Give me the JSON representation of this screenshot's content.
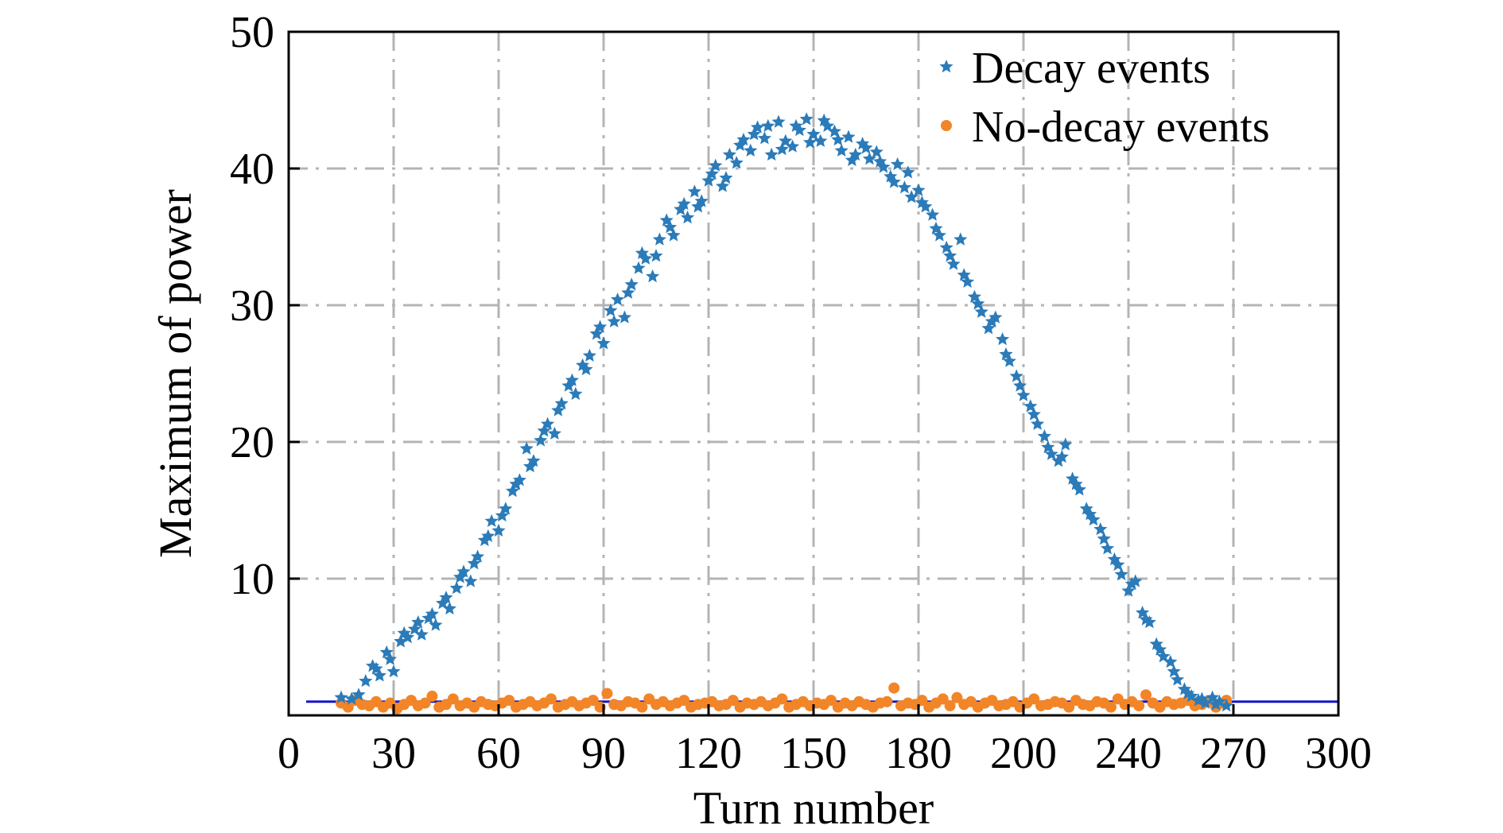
{
  "chart_data": {
    "type": "scatter",
    "title": "",
    "xlabel": "Turn number",
    "ylabel": "Maximum of power",
    "xlim": [
      0,
      300
    ],
    "ylim": [
      0,
      50
    ],
    "grid": true,
    "legend_position": "top-right",
    "x_tick_labels": [
      "0",
      "30",
      "60",
      "90",
      "120",
      "150",
      "180",
      "200",
      "240",
      "270",
      "300"
    ],
    "y_tick_labels": [
      "10",
      "20",
      "30",
      "40",
      "50"
    ],
    "threshold_line": {
      "y": 1.0,
      "x_range": [
        5,
        300
      ],
      "color": "#1515c8"
    },
    "series": [
      {
        "name": "Decay events",
        "marker": "star",
        "color": "#2b7bb9",
        "points": [
          [
            15,
            1.3
          ],
          [
            18,
            1.2
          ],
          [
            20,
            1.5
          ],
          [
            22,
            2.5
          ],
          [
            24,
            3.6
          ],
          [
            26,
            2.9
          ],
          [
            28,
            4.6
          ],
          [
            30,
            3.2
          ],
          [
            32,
            5.4
          ],
          [
            34,
            5.7
          ],
          [
            36,
            6.3
          ],
          [
            38,
            5.9
          ],
          [
            40,
            7.1
          ],
          [
            42,
            6.6
          ],
          [
            44,
            8.2
          ],
          [
            46,
            7.8
          ],
          [
            48,
            9.3
          ],
          [
            50,
            10.5
          ],
          [
            52,
            9.8
          ],
          [
            54,
            11.6
          ],
          [
            56,
            12.8
          ],
          [
            58,
            14.2
          ],
          [
            60,
            13.5
          ],
          [
            62,
            15.1
          ],
          [
            64,
            16.4
          ],
          [
            66,
            17.2
          ],
          [
            68,
            19.5
          ],
          [
            70,
            18.6
          ],
          [
            72,
            20.1
          ],
          [
            74,
            21.3
          ],
          [
            76,
            20.6
          ],
          [
            78,
            22.8
          ],
          [
            80,
            24.1
          ],
          [
            82,
            23.5
          ],
          [
            84,
            25.6
          ],
          [
            86,
            26.3
          ],
          [
            88,
            27.9
          ],
          [
            90,
            27.2
          ],
          [
            92,
            29.6
          ],
          [
            94,
            30.4
          ],
          [
            96,
            29.1
          ],
          [
            98,
            31.5
          ],
          [
            100,
            32.7
          ],
          [
            102,
            33.4
          ],
          [
            104,
            32.1
          ],
          [
            106,
            34.8
          ],
          [
            108,
            36.2
          ],
          [
            110,
            35.1
          ],
          [
            112,
            37.0
          ],
          [
            114,
            36.4
          ],
          [
            116,
            38.3
          ],
          [
            118,
            37.6
          ],
          [
            120,
            39.1
          ],
          [
            122,
            40.2
          ],
          [
            124,
            38.7
          ],
          [
            126,
            41.0
          ],
          [
            128,
            40.4
          ],
          [
            130,
            42.1
          ],
          [
            132,
            41.3
          ],
          [
            134,
            43.0
          ],
          [
            136,
            42.2
          ],
          [
            138,
            41.0
          ],
          [
            140,
            43.4
          ],
          [
            142,
            42.0
          ],
          [
            144,
            41.6
          ],
          [
            146,
            42.8
          ],
          [
            148,
            43.6
          ],
          [
            150,
            42.5
          ],
          [
            152,
            42.0
          ],
          [
            154,
            43.1
          ],
          [
            156,
            42.7
          ],
          [
            158,
            41.3
          ],
          [
            160,
            42.3
          ],
          [
            162,
            41.0
          ],
          [
            164,
            41.8
          ],
          [
            166,
            40.7
          ],
          [
            168,
            41.2
          ],
          [
            170,
            40.1
          ],
          [
            172,
            39.4
          ],
          [
            174,
            40.3
          ],
          [
            176,
            38.6
          ],
          [
            178,
            37.9
          ],
          [
            180,
            38.4
          ],
          [
            182,
            37.2
          ],
          [
            184,
            36.6
          ],
          [
            186,
            35.1
          ],
          [
            188,
            34.2
          ],
          [
            190,
            33.0
          ],
          [
            192,
            34.8
          ],
          [
            194,
            31.7
          ],
          [
            196,
            30.6
          ],
          [
            198,
            29.5
          ],
          [
            200,
            28.3
          ],
          [
            202,
            29.1
          ],
          [
            204,
            27.5
          ],
          [
            206,
            25.9
          ],
          [
            208,
            24.8
          ],
          [
            210,
            23.4
          ],
          [
            212,
            22.6
          ],
          [
            214,
            21.3
          ],
          [
            216,
            20.4
          ],
          [
            218,
            19.1
          ],
          [
            220,
            18.6
          ],
          [
            222,
            19.8
          ],
          [
            224,
            17.3
          ],
          [
            226,
            16.5
          ],
          [
            228,
            15.1
          ],
          [
            230,
            14.3
          ],
          [
            232,
            13.6
          ],
          [
            234,
            12.2
          ],
          [
            236,
            11.4
          ],
          [
            238,
            10.3
          ],
          [
            240,
            9.1
          ],
          [
            242,
            9.8
          ],
          [
            244,
            7.5
          ],
          [
            246,
            6.8
          ],
          [
            248,
            5.2
          ],
          [
            250,
            4.3
          ],
          [
            252,
            3.9
          ],
          [
            254,
            2.6
          ],
          [
            256,
            1.9
          ],
          [
            258,
            1.4
          ],
          [
            260,
            1.1
          ],
          [
            262,
            0.9
          ],
          [
            264,
            1.3
          ],
          [
            266,
            1.0
          ],
          [
            268,
            0.7
          ],
          [
            25,
            3.4
          ],
          [
            29,
            4.1
          ],
          [
            33,
            6.0
          ],
          [
            37,
            6.8
          ],
          [
            41,
            7.4
          ],
          [
            45,
            8.6
          ],
          [
            49,
            10.1
          ],
          [
            53,
            11.1
          ],
          [
            57,
            13.1
          ],
          [
            61,
            14.6
          ],
          [
            65,
            16.9
          ],
          [
            69,
            18.2
          ],
          [
            73,
            20.8
          ],
          [
            77,
            22.3
          ],
          [
            81,
            24.5
          ],
          [
            85,
            25.3
          ],
          [
            89,
            28.4
          ],
          [
            93,
            28.8
          ],
          [
            97,
            30.9
          ],
          [
            101,
            33.8
          ],
          [
            105,
            33.6
          ],
          [
            109,
            35.7
          ],
          [
            113,
            37.4
          ],
          [
            117,
            37.2
          ],
          [
            121,
            39.6
          ],
          [
            125,
            39.3
          ],
          [
            129,
            41.7
          ],
          [
            133,
            42.5
          ],
          [
            137,
            43.1
          ],
          [
            141,
            41.4
          ],
          [
            145,
            43.1
          ],
          [
            149,
            41.9
          ],
          [
            153,
            43.5
          ],
          [
            157,
            42.1
          ],
          [
            161,
            40.6
          ],
          [
            165,
            41.5
          ],
          [
            169,
            40.5
          ],
          [
            173,
            39.0
          ],
          [
            177,
            39.7
          ],
          [
            181,
            37.5
          ],
          [
            185,
            35.6
          ],
          [
            189,
            33.6
          ],
          [
            193,
            32.2
          ],
          [
            197,
            30.1
          ],
          [
            201,
            28.8
          ],
          [
            205,
            26.4
          ],
          [
            209,
            24.1
          ],
          [
            213,
            22.0
          ],
          [
            217,
            19.6
          ],
          [
            221,
            18.9
          ],
          [
            225,
            16.9
          ],
          [
            229,
            14.7
          ],
          [
            233,
            12.9
          ],
          [
            237,
            11.0
          ],
          [
            241,
            9.6
          ],
          [
            245,
            7.0
          ],
          [
            249,
            4.8
          ],
          [
            253,
            3.2
          ],
          [
            257,
            1.6
          ],
          [
            261,
            1.2
          ],
          [
            265,
            0.8
          ]
        ]
      },
      {
        "name": "No-decay events",
        "marker": "circle",
        "color": "#f28527",
        "points": [
          [
            15,
            0.9
          ],
          [
            17,
            0.6
          ],
          [
            19,
            1.1
          ],
          [
            21,
            0.8
          ],
          [
            23,
            0.7
          ],
          [
            25,
            1.0
          ],
          [
            27,
            0.6
          ],
          [
            29,
            0.9
          ],
          [
            31,
            0.5
          ],
          [
            33,
            0.8
          ],
          [
            35,
            1.1
          ],
          [
            37,
            0.7
          ],
          [
            39,
            0.9
          ],
          [
            41,
            1.4
          ],
          [
            43,
            0.6
          ],
          [
            45,
            0.8
          ],
          [
            47,
            1.2
          ],
          [
            49,
            0.7
          ],
          [
            51,
            0.9
          ],
          [
            53,
            0.6
          ],
          [
            55,
            1.0
          ],
          [
            57,
            0.8
          ],
          [
            59,
            0.7
          ],
          [
            61,
            0.9
          ],
          [
            63,
            1.1
          ],
          [
            65,
            0.6
          ],
          [
            67,
            0.8
          ],
          [
            69,
            1.0
          ],
          [
            71,
            0.7
          ],
          [
            73,
            0.9
          ],
          [
            75,
            1.2
          ],
          [
            77,
            0.6
          ],
          [
            79,
            0.8
          ],
          [
            81,
            1.0
          ],
          [
            83,
            0.7
          ],
          [
            85,
            0.9
          ],
          [
            87,
            1.1
          ],
          [
            89,
            0.6
          ],
          [
            91,
            1.6
          ],
          [
            93,
            0.8
          ],
          [
            95,
            0.7
          ],
          [
            97,
            1.0
          ],
          [
            99,
            0.9
          ],
          [
            101,
            0.6
          ],
          [
            103,
            1.2
          ],
          [
            105,
            0.8
          ],
          [
            107,
            1.0
          ],
          [
            109,
            0.7
          ],
          [
            111,
            0.9
          ],
          [
            113,
            1.1
          ],
          [
            115,
            0.6
          ],
          [
            117,
            0.8
          ],
          [
            119,
            0.9
          ],
          [
            121,
            1.0
          ],
          [
            123,
            0.7
          ],
          [
            125,
            0.8
          ],
          [
            127,
            1.1
          ],
          [
            129,
            0.6
          ],
          [
            131,
            0.9
          ],
          [
            133,
            0.8
          ],
          [
            135,
            1.0
          ],
          [
            137,
            0.7
          ],
          [
            139,
            0.9
          ],
          [
            141,
            1.2
          ],
          [
            143,
            0.6
          ],
          [
            145,
            0.8
          ],
          [
            147,
            1.0
          ],
          [
            149,
            0.7
          ],
          [
            151,
            0.9
          ],
          [
            153,
            0.8
          ],
          [
            155,
            1.1
          ],
          [
            157,
            0.6
          ],
          [
            159,
            0.9
          ],
          [
            161,
            0.7
          ],
          [
            163,
            1.0
          ],
          [
            165,
            0.8
          ],
          [
            167,
            0.6
          ],
          [
            169,
            0.9
          ],
          [
            171,
            1.0
          ],
          [
            173,
            2.0
          ],
          [
            175,
            0.7
          ],
          [
            177,
            0.9
          ],
          [
            179,
            0.8
          ],
          [
            181,
            1.1
          ],
          [
            183,
            0.6
          ],
          [
            185,
            0.9
          ],
          [
            187,
            1.2
          ],
          [
            189,
            0.7
          ],
          [
            191,
            1.3
          ],
          [
            193,
            0.8
          ],
          [
            195,
            1.0
          ],
          [
            197,
            0.6
          ],
          [
            199,
            0.9
          ],
          [
            201,
            1.1
          ],
          [
            203,
            0.7
          ],
          [
            205,
            0.8
          ],
          [
            207,
            1.0
          ],
          [
            209,
            0.6
          ],
          [
            211,
            0.9
          ],
          [
            213,
            1.2
          ],
          [
            215,
            0.7
          ],
          [
            217,
            0.8
          ],
          [
            219,
            1.0
          ],
          [
            221,
            0.9
          ],
          [
            223,
            0.6
          ],
          [
            225,
            1.1
          ],
          [
            227,
            0.8
          ],
          [
            229,
            0.7
          ],
          [
            231,
            1.0
          ],
          [
            233,
            0.9
          ],
          [
            235,
            0.6
          ],
          [
            237,
            1.2
          ],
          [
            239,
            0.8
          ],
          [
            241,
            1.0
          ],
          [
            243,
            0.7
          ],
          [
            245,
            1.5
          ],
          [
            247,
            0.9
          ],
          [
            249,
            0.6
          ],
          [
            251,
            1.0
          ],
          [
            253,
            0.8
          ],
          [
            255,
            0.9
          ],
          [
            257,
            1.1
          ],
          [
            259,
            0.7
          ],
          [
            261,
            0.8
          ],
          [
            263,
            1.0
          ],
          [
            265,
            0.6
          ],
          [
            267,
            0.9
          ],
          [
            268,
            1.1
          ]
        ]
      }
    ]
  }
}
